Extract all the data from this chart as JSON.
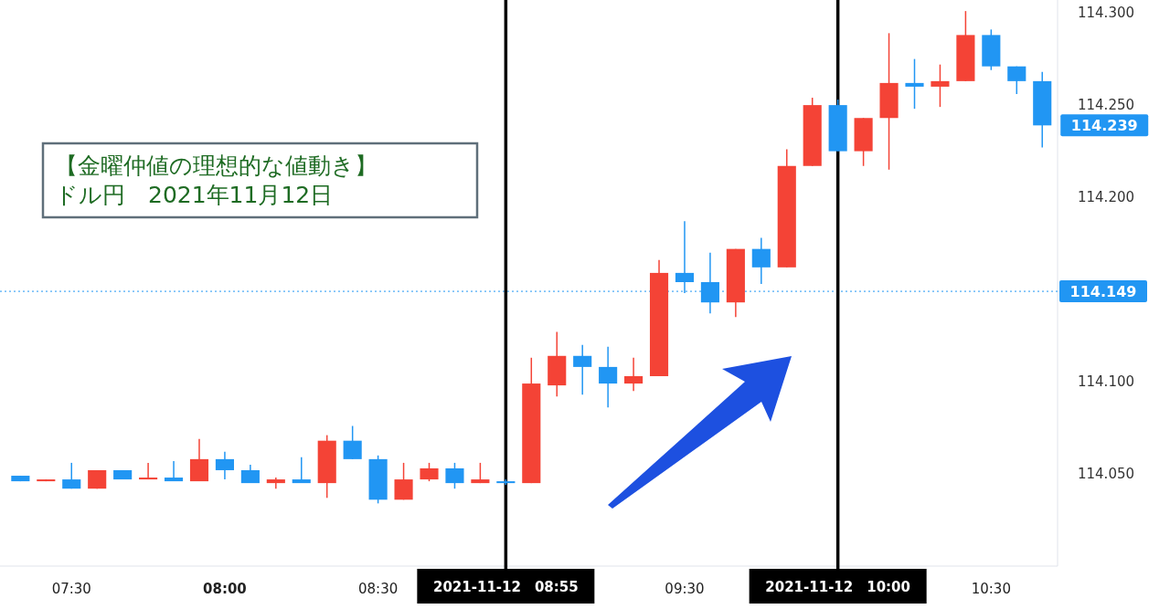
{
  "chart_data": {
    "type": "candlestick",
    "annotations": [
      "【金曜仲値の理想的な値動き】",
      "ドル円　2021年11月12日",
      {
        "text": "114.239",
        "x": "2021-11-12T10:40",
        "y": 114.239
      }
    ],
    "x": [
      "2021-11-12T07:20",
      "2021-11-12T07:25",
      "2021-11-12T07:30",
      "2021-11-12T07:35",
      "2021-11-12T07:40",
      "2021-11-12T07:45",
      "2021-11-12T07:50",
      "2021-11-12T07:55",
      "2021-11-12T08:00",
      "2021-11-12T08:05",
      "2021-11-12T08:10",
      "2021-11-12T08:15",
      "2021-11-12T08:20",
      "2021-11-12T08:25",
      "2021-11-12T08:30",
      "2021-11-12T08:35",
      "2021-11-12T08:40",
      "2021-11-12T08:45",
      "2021-11-12T08:50",
      "2021-11-12T08:55",
      "2021-11-12T09:00",
      "2021-11-12T09:05",
      "2021-11-12T09:10",
      "2021-11-12T09:15",
      "2021-11-12T09:20",
      "2021-11-12T09:25",
      "2021-11-12T09:30",
      "2021-11-12T09:35",
      "2021-11-12T09:40",
      "2021-11-12T09:45",
      "2021-11-12T09:50",
      "2021-11-12T09:55",
      "2021-11-12T10:00",
      "2021-11-12T10:05",
      "2021-11-12T10:10",
      "2021-11-12T10:15",
      "2021-11-12T10:20",
      "2021-11-12T10:25",
      "2021-11-12T10:30",
      "2021-11-12T10:35",
      "2021-11-12T10:40"
    ],
    "ohlc": [
      [
        114.049,
        114.049,
        114.046,
        114.046
      ],
      [
        114.046,
        114.047,
        114.046,
        114.047
      ],
      [
        114.047,
        114.056,
        114.042,
        114.042
      ],
      [
        114.042,
        114.052,
        114.042,
        114.052
      ],
      [
        114.052,
        114.052,
        114.047,
        114.047
      ],
      [
        114.047,
        114.056,
        114.047,
        114.048
      ],
      [
        114.048,
        114.057,
        114.046,
        114.046
      ],
      [
        114.046,
        114.069,
        114.046,
        114.058
      ],
      [
        114.058,
        114.062,
        114.047,
        114.052
      ],
      [
        114.052,
        114.055,
        114.045,
        114.045
      ],
      [
        114.045,
        114.048,
        114.042,
        114.047
      ],
      [
        114.047,
        114.059,
        114.045,
        114.045
      ],
      [
        114.045,
        114.071,
        114.037,
        114.068
      ],
      [
        114.068,
        114.076,
        114.058,
        114.058
      ],
      [
        114.058,
        114.06,
        114.034,
        114.036
      ],
      [
        114.036,
        114.056,
        114.036,
        114.047
      ],
      [
        114.047,
        114.056,
        114.046,
        114.053
      ],
      [
        114.053,
        114.056,
        114.042,
        114.045
      ],
      [
        114.045,
        114.056,
        114.045,
        114.047
      ],
      [
        114.046,
        114.047,
        114.044,
        114.045
      ],
      [
        114.045,
        114.113,
        114.045,
        114.099
      ],
      [
        114.098,
        114.127,
        114.092,
        114.114
      ],
      [
        114.114,
        114.12,
        114.093,
        114.108
      ],
      [
        114.108,
        114.119,
        114.086,
        114.099
      ],
      [
        114.099,
        114.113,
        114.095,
        114.103
      ],
      [
        114.103,
        114.166,
        114.103,
        114.159
      ],
      [
        114.159,
        114.187,
        114.148,
        114.154
      ],
      [
        114.154,
        114.17,
        114.137,
        114.143
      ],
      [
        114.143,
        114.172,
        114.135,
        114.172
      ],
      [
        114.172,
        114.178,
        114.153,
        114.162
      ],
      [
        114.162,
        114.226,
        114.162,
        114.217
      ],
      [
        114.217,
        114.254,
        114.217,
        114.25
      ],
      [
        114.25,
        114.253,
        114.225,
        114.225
      ],
      [
        114.225,
        114.243,
        114.217,
        114.243
      ],
      [
        114.243,
        114.289,
        114.215,
        114.262
      ],
      [
        114.262,
        114.275,
        114.248,
        114.26
      ],
      [
        114.26,
        114.272,
        114.249,
        114.263
      ],
      [
        114.263,
        114.301,
        114.263,
        114.288
      ],
      [
        114.288,
        114.291,
        114.269,
        114.271
      ],
      [
        114.271,
        114.271,
        114.256,
        114.263
      ],
      [
        114.263,
        114.268,
        114.227,
        114.239
      ]
    ],
    "colors": [
      "#2196f3",
      "#f44336",
      "#2196f3",
      "#f44336",
      "#2196f3",
      "#f44336",
      "#2196f3",
      "#f44336",
      "#2196f3",
      "#2196f3",
      "#f44336",
      "#2196f3",
      "#f44336",
      "#2196f3",
      "#2196f3",
      "#f44336",
      "#f44336",
      "#2196f3",
      "#f44336",
      "#2196f3",
      "#f44336",
      "#f44336",
      "#2196f3",
      "#2196f3",
      "#f44336",
      "#f44336",
      "#2196f3",
      "#2196f3",
      "#f44336",
      "#2196f3",
      "#f44336",
      "#f44336",
      "#2196f3",
      "#f44336",
      "#f44336",
      "#2196f3",
      "#f44336",
      "#f44336",
      "#2196f3",
      "#2196f3",
      "#2196f3"
    ],
    "xlim": [
      "2021-11-12T07:16",
      "2021-11-12T10:43"
    ],
    "xticks": [
      {
        "value": "2021-11-12T07:30",
        "label": "07:30"
      },
      {
        "value": "2021-11-12T08:00",
        "label": "08:00"
      },
      {
        "value": "2021-11-12T08:30",
        "label": "08:30"
      },
      {
        "value": "2021-11-12T09:30",
        "label": "09:30"
      },
      {
        "value": "2021-11-12T10:30",
        "label": "10:30"
      }
    ],
    "ylim": [
      114.0,
      114.307
    ],
    "yticks": [
      {
        "value": 114.05,
        "label": "114.050"
      },
      {
        "value": 114.1,
        "label": "114.100"
      },
      {
        "value": 114.2,
        "label": "114.200"
      },
      {
        "value": 114.25,
        "label": "114.250"
      },
      {
        "value": 114.3,
        "label": "114.300"
      }
    ],
    "ref_lines": [
      {
        "axis": "x",
        "value": "2021-11-12T08:55",
        "label": "2021-11-12　08:55",
        "color": "#000000",
        "line_style": "solid"
      },
      {
        "axis": "x",
        "value": "2021-11-12T10:00",
        "label": "2021-11-12　10:00",
        "color": "#000000",
        "line_style": "solid"
      },
      {
        "axis": "y",
        "value": 114.149,
        "label": "114.149",
        "color": "#2196f3",
        "line_style": "dotted"
      }
    ],
    "grid": false
  }
}
